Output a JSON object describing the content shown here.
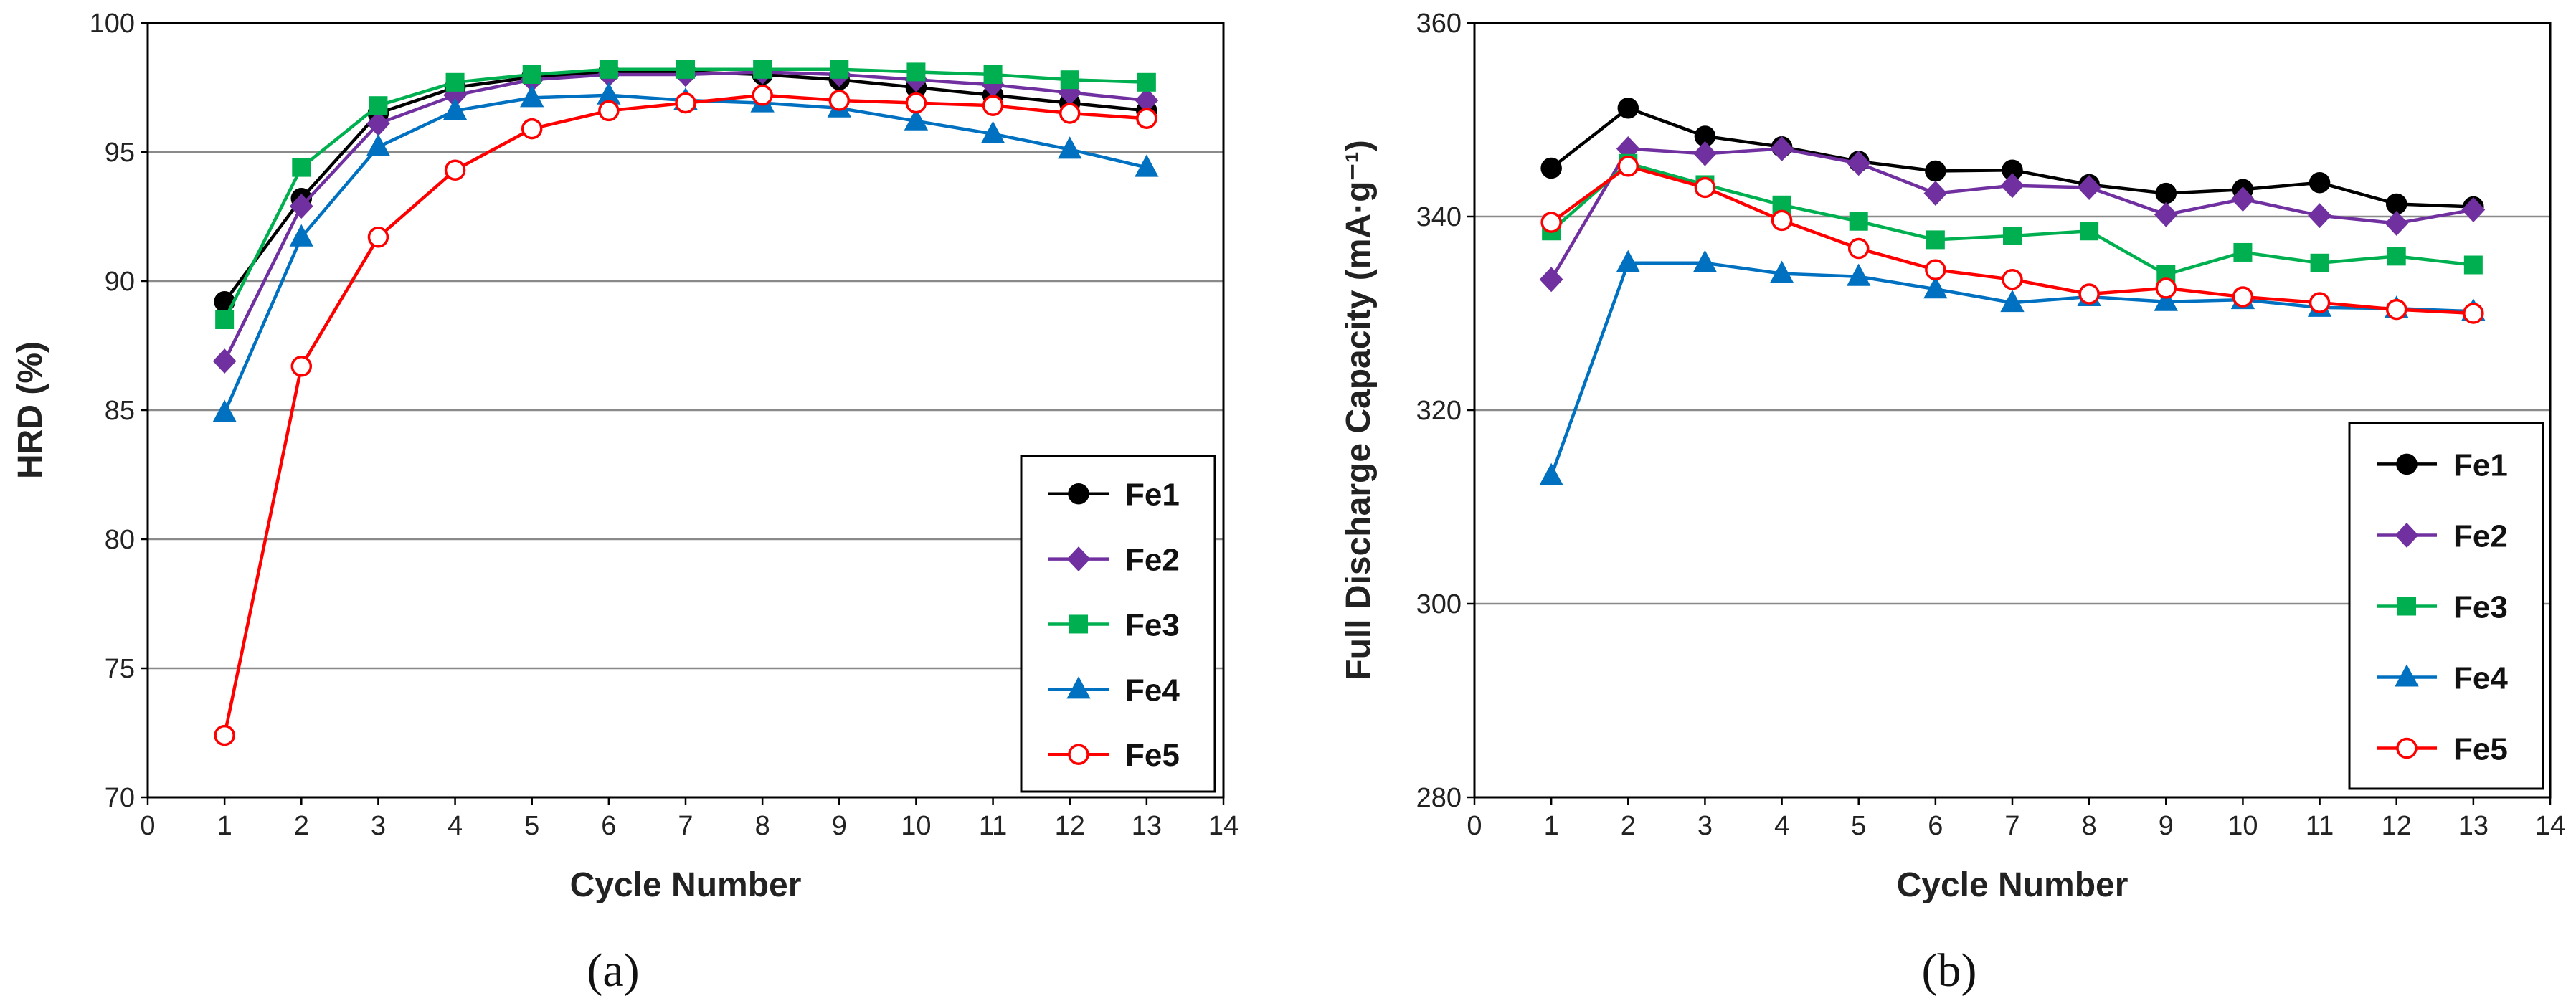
{
  "figure": {
    "panel_a_label": "(a)",
    "panel_b_label": "(b)"
  },
  "chart_data": [
    {
      "type": "line",
      "id": "a",
      "xlabel": "Cycle Number",
      "ylabel": "HRD (%)",
      "xlim": [
        0,
        14
      ],
      "ylim": [
        70,
        100
      ],
      "xticks": [
        0,
        1,
        2,
        3,
        4,
        5,
        6,
        7,
        8,
        9,
        10,
        11,
        12,
        13,
        14
      ],
      "yticks": [
        70,
        75,
        80,
        85,
        90,
        95,
        100
      ],
      "grid": "horizontal",
      "legend_position": "bottom-right",
      "x": [
        1,
        2,
        3,
        4,
        5,
        6,
        7,
        8,
        9,
        10,
        11,
        12,
        13
      ],
      "series": [
        {
          "name": "Fe1",
          "color": "#000000",
          "marker": "circle",
          "filled": true,
          "values": [
            89.2,
            93.2,
            96.5,
            97.5,
            97.9,
            98.1,
            98.1,
            98.0,
            97.8,
            97.5,
            97.2,
            96.9,
            96.6
          ]
        },
        {
          "name": "Fe2",
          "color": "#7030a0",
          "marker": "diamond",
          "filled": true,
          "values": [
            86.9,
            92.9,
            96.1,
            97.2,
            97.8,
            98.0,
            98.0,
            98.1,
            98.0,
            97.8,
            97.6,
            97.3,
            97.0
          ]
        },
        {
          "name": "Fe3",
          "color": "#00b050",
          "marker": "square",
          "filled": true,
          "values": [
            88.5,
            94.4,
            96.8,
            97.7,
            98.0,
            98.2,
            98.2,
            98.2,
            98.2,
            98.1,
            98.0,
            97.8,
            97.7
          ]
        },
        {
          "name": "Fe4",
          "color": "#0070c0",
          "marker": "triangle",
          "filled": true,
          "values": [
            84.9,
            91.7,
            95.2,
            96.6,
            97.1,
            97.2,
            97.0,
            96.9,
            96.7,
            96.2,
            95.7,
            95.1,
            94.4
          ]
        },
        {
          "name": "Fe5",
          "color": "#ff0000",
          "marker": "circle",
          "filled": false,
          "values": [
            72.4,
            86.7,
            91.7,
            94.3,
            95.9,
            96.6,
            96.9,
            97.2,
            97.0,
            96.9,
            96.8,
            96.5,
            96.3
          ]
        }
      ]
    },
    {
      "type": "line",
      "id": "b",
      "xlabel": "Cycle Number",
      "ylabel": "Full Discharge Capacity (mA·g⁻¹)",
      "xlim": [
        0,
        14
      ],
      "ylim": [
        280,
        360
      ],
      "xticks": [
        0,
        1,
        2,
        3,
        4,
        5,
        6,
        7,
        8,
        9,
        10,
        11,
        12,
        13,
        14
      ],
      "yticks": [
        280,
        300,
        320,
        340,
        360
      ],
      "grid": "horizontal",
      "legend_position": "bottom-right",
      "x": [
        1,
        2,
        3,
        4,
        5,
        6,
        7,
        8,
        9,
        10,
        11,
        12,
        13
      ],
      "series": [
        {
          "name": "Fe1",
          "color": "#000000",
          "marker": "circle",
          "filled": true,
          "values": [
            345.0,
            351.2,
            348.3,
            347.2,
            345.7,
            344.7,
            344.8,
            343.3,
            342.4,
            342.8,
            343.5,
            341.3,
            341.0
          ]
        },
        {
          "name": "Fe2",
          "color": "#7030a0",
          "marker": "diamond",
          "filled": true,
          "values": [
            333.5,
            347.0,
            346.5,
            347.0,
            345.5,
            342.4,
            343.2,
            343.0,
            340.2,
            341.8,
            340.1,
            339.3,
            340.7
          ]
        },
        {
          "name": "Fe3",
          "color": "#00b050",
          "marker": "square",
          "filled": true,
          "values": [
            338.5,
            345.5,
            343.3,
            341.2,
            339.5,
            337.6,
            338.0,
            338.5,
            334.0,
            336.3,
            335.2,
            335.9,
            335.0
          ]
        },
        {
          "name": "Fe4",
          "color": "#0070c0",
          "marker": "triangle",
          "filled": true,
          "values": [
            313.2,
            335.2,
            335.2,
            334.1,
            333.8,
            332.5,
            331.1,
            331.7,
            331.2,
            331.4,
            330.6,
            330.5,
            330.2
          ]
        },
        {
          "name": "Fe5",
          "color": "#ff0000",
          "marker": "circle",
          "filled": false,
          "values": [
            339.4,
            345.2,
            343.0,
            339.6,
            336.7,
            334.5,
            333.5,
            332.0,
            332.6,
            331.7,
            331.1,
            330.4,
            330.0
          ]
        }
      ]
    }
  ]
}
